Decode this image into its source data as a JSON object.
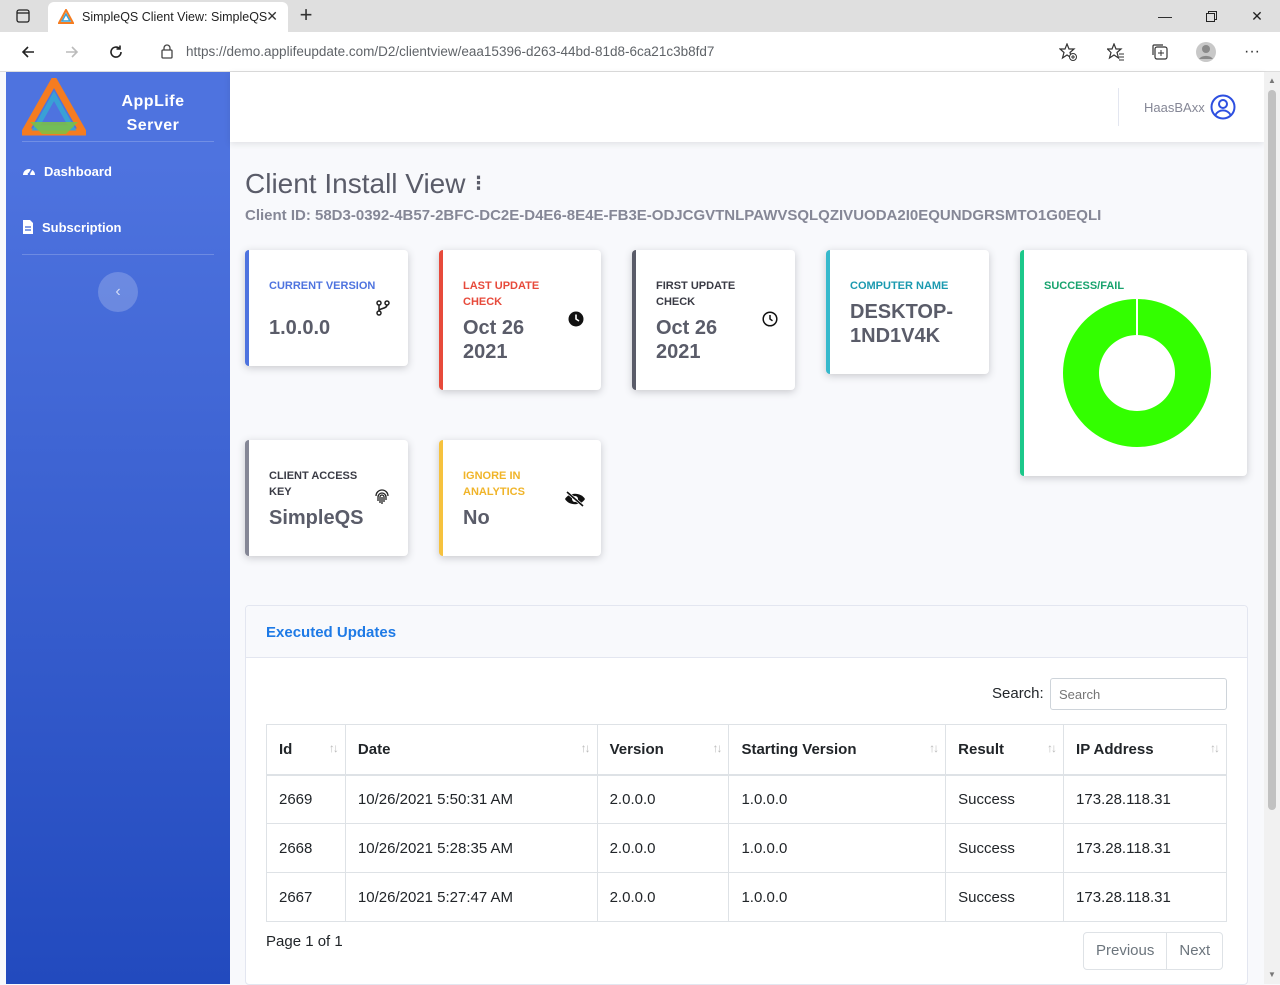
{
  "browser": {
    "tab_title": "SimpleQS Client View: SimpleQS",
    "url": "https://demo.applifeupdate.com/D2/clientview/eaa15396-d263-44bd-81d8-6ca21c3b8fd7"
  },
  "sidebar": {
    "brand_line1": "AppLife",
    "brand_line2": "Server",
    "items": [
      {
        "label": "Dashboard",
        "icon": "dashboard-icon"
      },
      {
        "label": "Subscription",
        "icon": "subscription-icon"
      }
    ],
    "toggle_icon": "chevron-left-icon"
  },
  "topbar": {
    "username": "HaasBAxx",
    "user_icon": "user-circle-icon"
  },
  "page": {
    "title": "Client Install View",
    "client_id": "Client ID: 58D3-0392-4B57-2BFC-DC2E-D4E6-8E4E-FB3E-ODJCGVTNLPAWVSQLQZIVUODA2I0EQUNDGRSMTO1G0EQLI"
  },
  "cards": {
    "current_version": {
      "label": "CURRENT VERSION",
      "value": "1.0.0.0",
      "color": "#4e73df",
      "icon": "code-branch-icon"
    },
    "last_update": {
      "label": "LAST UPDATE CHECK",
      "value_line1": "Oct 26",
      "value_line2": "2021",
      "color": "#e74a3b",
      "icon": "clock-solid-icon"
    },
    "first_update": {
      "label": "FIRST UPDATE CHECK",
      "value_line1": "Oct 26",
      "value_line2": "2021",
      "color": "#5a5c69",
      "icon": "clock-outline-icon"
    },
    "computer_name": {
      "label": "COMPUTER NAME",
      "value_line1": "DESKTOP-",
      "value_line2": "1ND1V4K",
      "color": "#36b9cc"
    },
    "success_fail": {
      "label": "SUCCESS/FAIL",
      "color": "#1cc88a"
    },
    "access_key": {
      "label": "CLIENT ACCESS KEY",
      "value": "SimpleQS",
      "color": "#858796",
      "icon": "fingerprint-icon"
    },
    "ignore": {
      "label": "IGNORE IN ANALYTICS",
      "value": "No",
      "color": "#f6c23e",
      "icon": "eye-slash-icon"
    }
  },
  "chart_data": {
    "type": "pie",
    "labels": [
      "Success",
      "Fail"
    ],
    "values": [
      3,
      0
    ],
    "colors": [
      "#33ff00",
      "#ff0000"
    ]
  },
  "updates": {
    "title": "Executed Updates",
    "search_label": "Search:",
    "search_placeholder": "Search",
    "columns": [
      "Id",
      "Date",
      "Version",
      "Starting Version",
      "Result",
      "IP Address"
    ],
    "rows": [
      [
        "2669",
        "10/26/2021 5:50:31 AM",
        "2.0.0.0",
        "1.0.0.0",
        "Success",
        "173.28.118.31"
      ],
      [
        "2668",
        "10/26/2021 5:28:35 AM",
        "2.0.0.0",
        "1.0.0.0",
        "Success",
        "173.28.118.31"
      ],
      [
        "2667",
        "10/26/2021 5:27:47 AM",
        "2.0.0.0",
        "1.0.0.0",
        "Success",
        "173.28.118.31"
      ]
    ],
    "page_info": "Page 1 of 1",
    "prev_label": "Previous",
    "next_label": "Next"
  }
}
